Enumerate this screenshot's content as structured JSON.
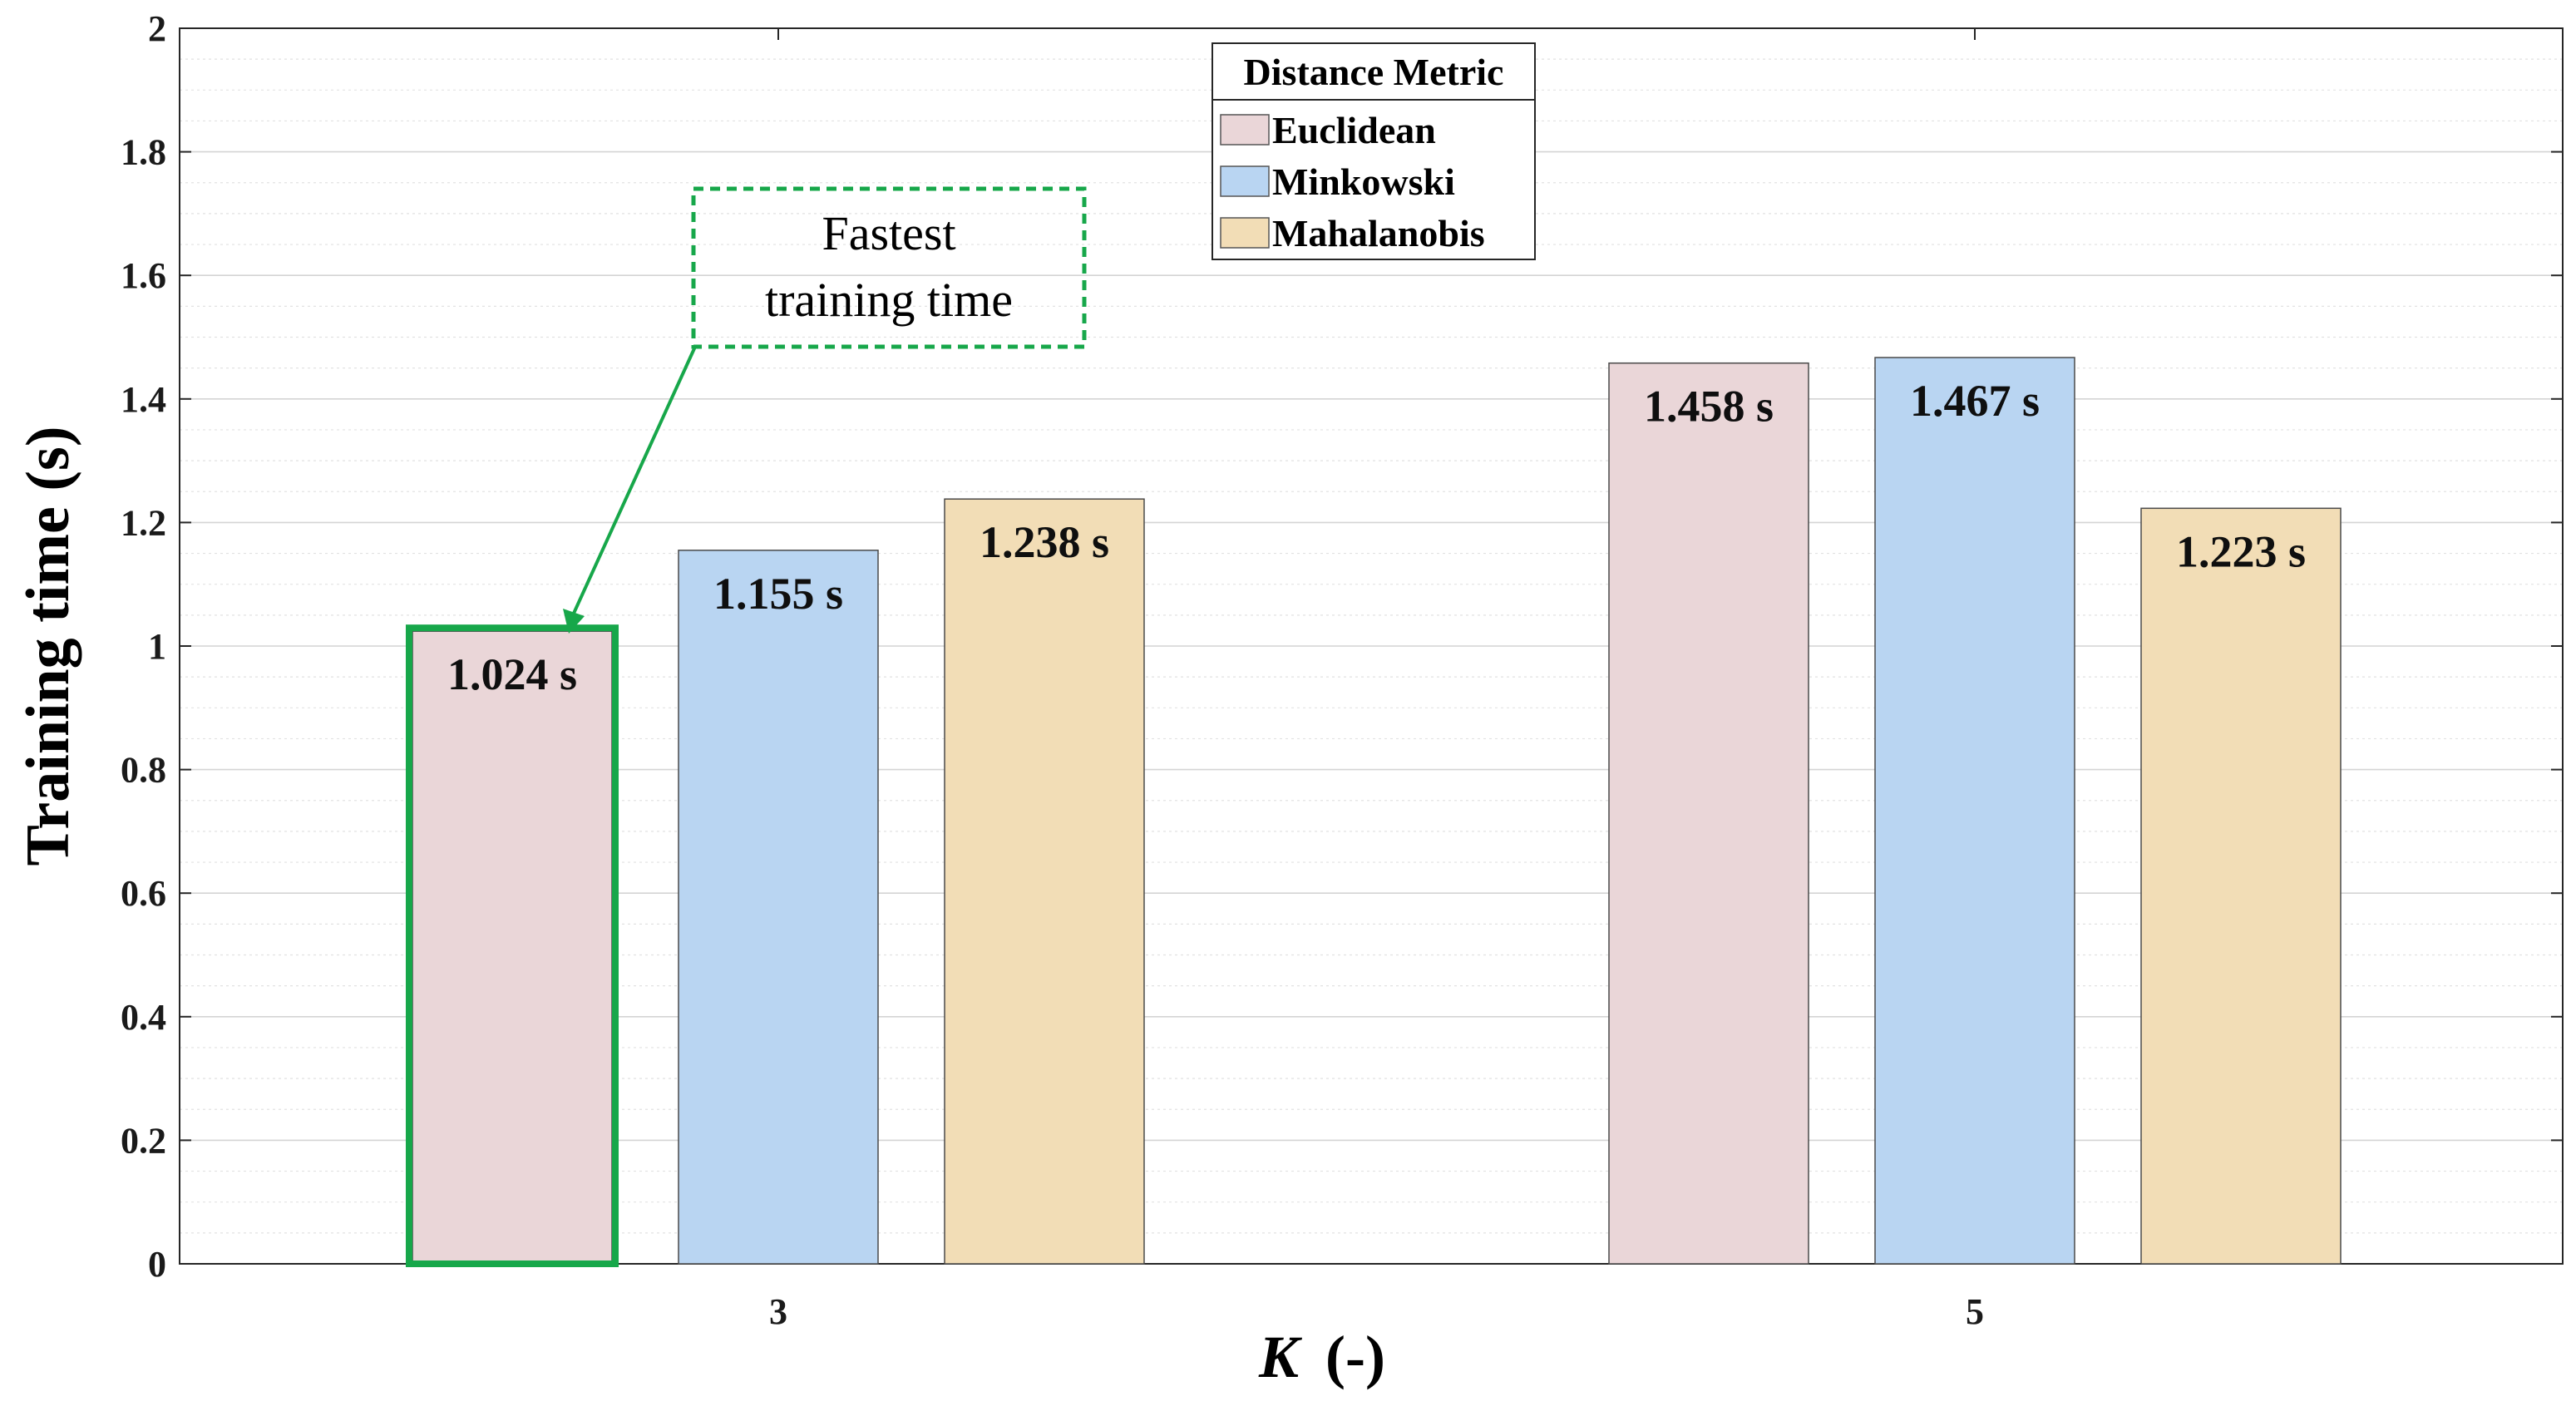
{
  "chart_data": {
    "type": "bar",
    "categories": [
      "3",
      "5"
    ],
    "series": [
      {
        "name": "Euclidean",
        "values": [
          1.024,
          1.458
        ],
        "labels": [
          "1.024 s",
          "1.458 s"
        ],
        "color": "#ead6d8"
      },
      {
        "name": "Minkowski",
        "values": [
          1.155,
          1.467
        ],
        "labels": [
          "1.155 s",
          "1.467 s"
        ],
        "color": "#b9d5f2"
      },
      {
        "name": "Mahalanobis",
        "values": [
          1.238,
          1.223
        ],
        "labels": [
          "1.238 s",
          "1.223 s"
        ],
        "color": "#f2ddb6"
      }
    ],
    "xlabel_var": "K",
    "xlabel_unit": "(-)",
    "ylabel": "Training time  (s)",
    "ylim": [
      0,
      2
    ],
    "yticks": [
      0,
      0.2,
      0.4,
      0.6,
      0.8,
      1,
      1.2,
      1.4,
      1.6,
      1.8,
      2
    ],
    "ytick_labels": [
      "0",
      "0.2",
      "0.4",
      "0.6",
      "0.8",
      "1",
      "1.2",
      "1.4",
      "1.6",
      "1.8",
      "2"
    ],
    "minor_grid_step": 0.05,
    "grid": true,
    "legend": {
      "title": "Distance Metric",
      "position": "top-center"
    },
    "annotation": {
      "line1": "Fastest",
      "line2": "training time",
      "target_series": "Euclidean",
      "target_category": "3",
      "color": "#17a74a"
    }
  }
}
